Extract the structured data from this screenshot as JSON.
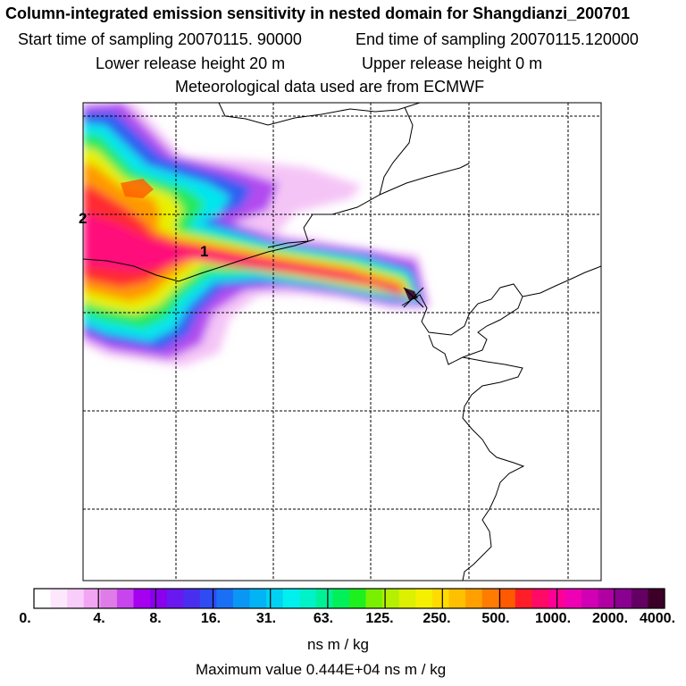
{
  "header": {
    "title": "Column-integrated emission sensitivity in nested domain for Shangdianzi_200701",
    "start_label": "Start time of sampling 20070115. 90000",
    "end_label": "End time of sampling 20070115.120000",
    "lower_label": "Lower release height   20 m",
    "upper_label": "Upper release height    0 m",
    "met_label": "Meteorological data used are from ECMWF"
  },
  "map": {
    "contour_labels": [
      "1",
      "2"
    ]
  },
  "legend": {
    "colors": [
      "#ffffff",
      "#fde7fd",
      "#f9cdf9",
      "#f2a5f2",
      "#e07ce8",
      "#c845ee",
      "#a600f0",
      "#8a00ee",
      "#6a18f0",
      "#4a2ef0",
      "#2f4cf2",
      "#1a70f5",
      "#0a96f5",
      "#00b4f5",
      "#00d2f2",
      "#00f0f0",
      "#00f2c8",
      "#00f096",
      "#00f05a",
      "#1ef01e",
      "#78f000",
      "#b4f000",
      "#dcf000",
      "#f5f000",
      "#ffdc00",
      "#ffc000",
      "#ffa000",
      "#ff7c00",
      "#ff5a00",
      "#ff1e28",
      "#ff0a64",
      "#ff0096",
      "#f000b4",
      "#d200b4",
      "#b000a4",
      "#8a0090",
      "#640064",
      "#3c0028"
    ],
    "ticks": [
      "0.",
      "4.",
      "8.",
      "16.",
      "31.",
      "63.",
      "125.",
      "250.",
      "500.",
      "1000.",
      "2000.",
      "4000."
    ],
    "units": "ns m / kg",
    "max_text": "Maximum value  0.444E+04 ns m / kg"
  }
}
